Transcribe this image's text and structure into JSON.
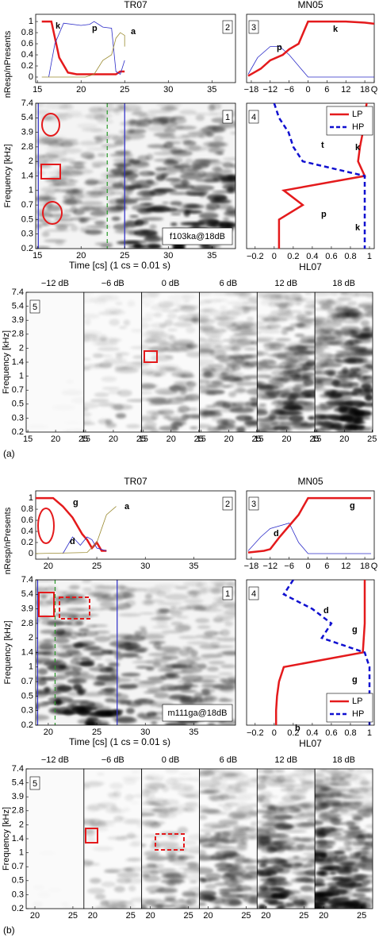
{
  "figure_labels": [
    "(a)",
    "(b)"
  ],
  "chart_data": [
    {
      "type": "line",
      "title": "TR07",
      "ylabel": "nResp/nPresents",
      "panel_label": "2",
      "xlim": [
        14.8,
        37.7
      ],
      "xticks": [
        15,
        20,
        25,
        30,
        35
      ],
      "ylim": [
        -0.1,
        1.13
      ],
      "yticks": [
        0,
        0.2,
        0.4,
        0.6,
        0.8,
        1
      ],
      "series": [
        {
          "name": "k",
          "color": "#e41a1c",
          "linewidth": 2.5,
          "x": [
            15.5,
            16.6,
            17.5,
            18.5,
            19.5,
            24,
            24.5,
            25
          ],
          "values": [
            1,
            1,
            0.35,
            0.08,
            0.05,
            0.05,
            0.1,
            0.1
          ]
        },
        {
          "name": "p",
          "color": "#2b2bc8",
          "linewidth": 0.8,
          "x": [
            16.3,
            17,
            18,
            20,
            21,
            21.5,
            22.5,
            23.5,
            24,
            24.5,
            25
          ],
          "values": [
            0,
            0.6,
            0.97,
            0.93,
            0.95,
            1,
            0.9,
            0.88,
            0.1,
            0.05,
            0.3
          ]
        },
        {
          "name": "a",
          "color": "#9a8a30",
          "linewidth": 0.8,
          "x": [
            15.5,
            20.5,
            21.5,
            22.5,
            23.5,
            24,
            24.5,
            25,
            25
          ],
          "values": [
            0,
            0,
            0.05,
            0.3,
            0.4,
            0.7,
            0.8,
            0.75,
            0.55
          ]
        }
      ]
    },
    {
      "type": "line",
      "title": "MN05",
      "panel_label": "3",
      "xlim": [
        -19.5,
        21
      ],
      "xticks": [
        {
          "value": -18,
          "label": "−18"
        },
        {
          "value": -12,
          "label": "−12"
        },
        {
          "value": -6,
          "label": "−6"
        },
        0,
        6,
        12,
        18,
        {
          "value": 21,
          "label": "Q"
        }
      ],
      "ylim": [
        -0.1,
        1.13
      ],
      "series": [
        {
          "name": "p",
          "color": "#2b2bc8",
          "linewidth": 0.8,
          "x": [
            -19,
            -16,
            -12,
            -9,
            -6,
            -3,
            0,
            21
          ],
          "values": [
            0.05,
            0.35,
            0.55,
            0.55,
            0.4,
            0.2,
            0,
            0
          ]
        },
        {
          "name": "k",
          "color": "#e41a1c",
          "linewidth": 2.5,
          "x": [
            -19,
            -15,
            -12,
            -8,
            -6,
            -3,
            0,
            6,
            12,
            18,
            21
          ],
          "values": [
            0.02,
            0.15,
            0.3,
            0.4,
            0.5,
            0.6,
            1,
            1,
            1,
            0.98,
            0.96
          ]
        }
      ]
    },
    {
      "type": "spectrogram",
      "panel_label": "1",
      "caption": "f103ka@18dB",
      "xlabel": "Time [cs] (1 cs = 0.01 s)",
      "ylabel": "Frequency [kHz]",
      "xlim": [
        14.8,
        37.7
      ],
      "xticks": [
        15,
        20,
        25,
        30,
        35
      ],
      "yticks": [
        7.4,
        5.4,
        3.9,
        2.8,
        2,
        1.4,
        1,
        0.7,
        0.5,
        0.3,
        0.2
      ],
      "lines": [
        {
          "x": 15.1,
          "color": "#2b2bc8",
          "dashed": false
        },
        {
          "x": 23,
          "color": "#2a9a2a",
          "dashed": true
        },
        {
          "x": 25,
          "color": "#2b2bc8",
          "dashed": false
        }
      ]
    },
    {
      "type": "profile",
      "xlabel": "HL07",
      "panel_label": "4",
      "xlim": [
        -0.29,
        1.05
      ],
      "xticks": [
        {
          "value": -0.2,
          "label": "−0.2"
        },
        0,
        0.2,
        0.4,
        0.6,
        0.8,
        1
      ],
      "legend": "upper right",
      "annotations": [
        "t",
        "k",
        "p",
        "k"
      ],
      "series": [
        {
          "name": "LP",
          "color": "#e41a1c",
          "dashed": false,
          "values": [
            0.97,
            0.95,
            0.93,
            0.9,
            0.88,
            0.95,
            0.1,
            0.3,
            0.05,
            0.05,
            0.05
          ]
        },
        {
          "name": "HP",
          "color": "#1010d0",
          "dashed": true,
          "values": [
            0,
            0.05,
            0.15,
            0.2,
            0.3,
            0.95,
            0.95,
            0.95,
            0.95,
            0.95,
            0.95
          ]
        }
      ]
    },
    {
      "type": "strip",
      "panel_label": "5",
      "ylabel": "Frequency [kHz]",
      "titles": [
        "−12 dB",
        "−6 dB",
        "0 dB",
        "6 dB",
        "12 dB",
        "18 dB"
      ],
      "xlim": [
        14.7,
        25.1
      ],
      "xticks": [
        15,
        20,
        25
      ],
      "yticks": [
        7.4,
        5.4,
        3.9,
        2.8,
        2,
        1.4,
        1,
        0.7,
        0.5,
        0.3,
        0.2
      ]
    },
    {
      "type": "line",
      "title": "TR07",
      "ylabel": "nResp/nPresents",
      "panel_label": "2",
      "xlim": [
        18.7,
        39.3
      ],
      "xticks": [
        20,
        25,
        30,
        35
      ],
      "ylim": [
        -0.1,
        1.13
      ],
      "yticks": [
        0,
        0.2,
        0.4,
        0.6,
        0.8,
        1
      ],
      "series": [
        {
          "name": "g",
          "color": "#e41a1c",
          "linewidth": 2.5,
          "x": [
            18.5,
            20.5,
            21.5,
            22.5,
            23.5,
            24,
            24.5,
            25,
            25.5,
            26
          ],
          "values": [
            1,
            1,
            0.85,
            0.65,
            0.35,
            0.25,
            0.1,
            0.2,
            0.05,
            0.05
          ]
        },
        {
          "name": "d",
          "color": "#2b2bc8",
          "linewidth": 0.8,
          "x": [
            21.5,
            22.5,
            23.3,
            24,
            24.5,
            25,
            26
          ],
          "values": [
            0,
            0.3,
            0.15,
            0.3,
            0.25,
            0.1,
            0.05
          ]
        },
        {
          "name": "a",
          "color": "#9a8a30",
          "linewidth": 0.8,
          "x": [
            18.7,
            24,
            25,
            26,
            27
          ],
          "values": [
            0,
            0.02,
            0.2,
            0.7,
            0.85
          ]
        }
      ]
    },
    {
      "type": "line",
      "title": "MN05",
      "panel_label": "3",
      "xlim": [
        -19.5,
        21
      ],
      "xticks": [
        {
          "value": -18,
          "label": "−18"
        },
        {
          "value": -12,
          "label": "−12"
        },
        {
          "value": -6,
          "label": "−6"
        },
        0,
        6,
        12,
        18,
        {
          "value": 21,
          "label": "Q"
        }
      ],
      "ylim": [
        -0.1,
        1.13
      ],
      "series": [
        {
          "name": "d",
          "color": "#2b2bc8",
          "linewidth": 0.8,
          "x": [
            -19,
            -15,
            -12,
            -6,
            -3,
            0,
            20
          ],
          "values": [
            0.05,
            0.3,
            0.45,
            0.55,
            0.2,
            0,
            0
          ]
        },
        {
          "name": "g",
          "color": "#e41a1c",
          "linewidth": 2.5,
          "x": [
            -19,
            -14,
            -12,
            -9,
            -6,
            -3,
            0,
            6,
            12,
            18,
            20
          ],
          "values": [
            0.02,
            0.05,
            0.08,
            0.3,
            0.5,
            0.7,
            1,
            1,
            1,
            1,
            1
          ]
        }
      ]
    },
    {
      "type": "spectrogram",
      "panel_label": "1",
      "caption": "m111ga@18dB",
      "xlabel": "Time [cs] (1 cs = 0.01 s)",
      "ylabel": "Frequency [kHz]",
      "xlim": [
        18.7,
        39.3
      ],
      "xticks": [
        20,
        25,
        30,
        35
      ],
      "yticks": [
        7.4,
        5.4,
        3.9,
        2.8,
        2,
        1.4,
        1,
        0.7,
        0.5,
        0.3,
        0.2
      ],
      "lines": [
        {
          "x": 18.9,
          "color": "#2b2bc8",
          "dashed": false
        },
        {
          "x": 20.7,
          "color": "#2a9a2a",
          "dashed": true
        },
        {
          "x": 27.1,
          "color": "#2b2bc8",
          "dashed": false
        }
      ]
    },
    {
      "type": "profile",
      "xlabel": "HL07",
      "panel_label": "4",
      "xlim": [
        -0.29,
        1.05
      ],
      "xticks": [
        {
          "value": -0.2,
          "label": "−0.2"
        },
        0,
        0.2,
        0.4,
        0.6,
        0.8,
        1
      ],
      "legend": "lower right",
      "annotations": [
        "d",
        "g",
        "g",
        "b"
      ],
      "series": [
        {
          "name": "LP",
          "color": "#e41a1c",
          "dashed": false,
          "values": [
            0.95,
            0.95,
            0.95,
            0.95,
            0.94,
            0.93,
            0.1,
            0.05,
            0.03,
            0.02,
            0.02
          ]
        },
        {
          "name": "HP",
          "color": "#1010d0",
          "dashed": true,
          "values": [
            0.2,
            0.1,
            0.4,
            0.6,
            0.5,
            0.95,
            1,
            1,
            1,
            1,
            1
          ]
        }
      ]
    },
    {
      "type": "strip",
      "panel_label": "5",
      "ylabel": "Frequency [kHz]",
      "titles": [
        "−12 dB",
        "−6 dB",
        "0 dB",
        "6 dB",
        "12 dB",
        "18 dB"
      ],
      "xlim": [
        18.85,
        26.45
      ],
      "xticks": [
        20,
        25
      ],
      "yticks": [
        7.4,
        5.4,
        3.9,
        2.8,
        2,
        1.4,
        1,
        0.7,
        0.5,
        0.3,
        0.2
      ]
    }
  ]
}
